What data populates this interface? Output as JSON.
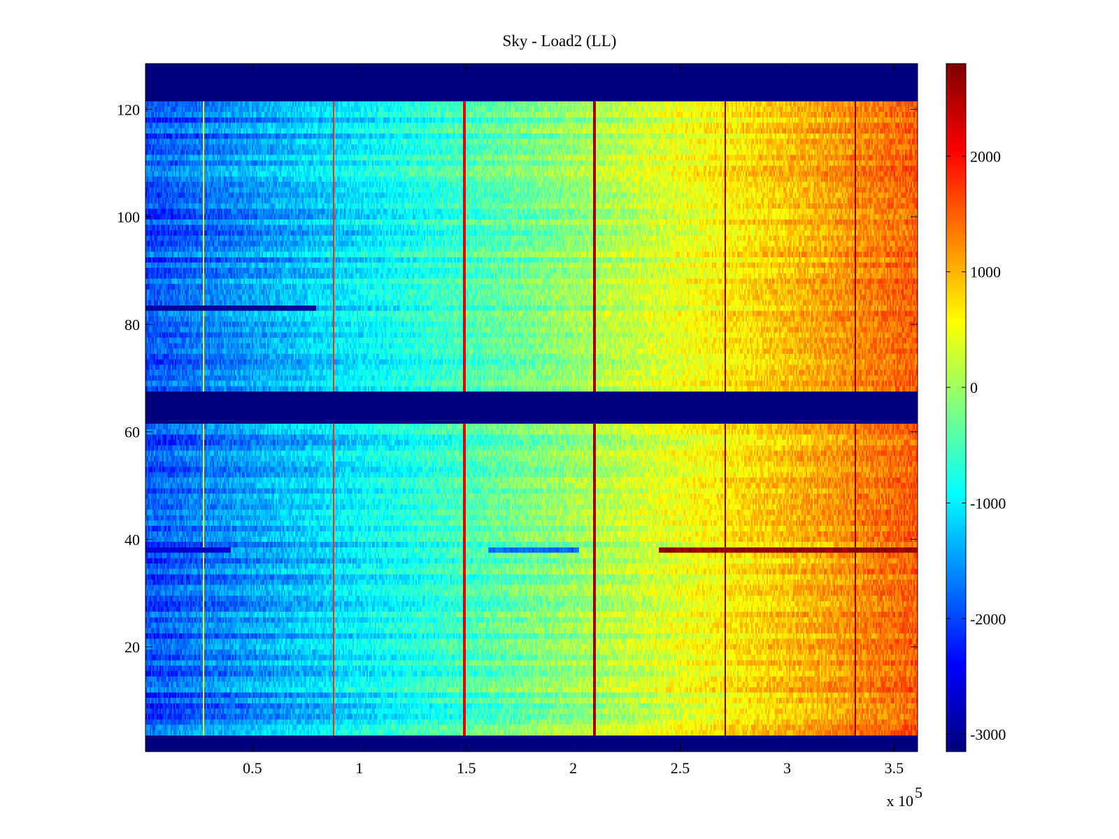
{
  "chart_data": {
    "type": "heatmap",
    "title": "Sky - Load2 (LL)",
    "xlabel": "",
    "ylabel": "",
    "x_exponent_label": "x 10",
    "x_exponent_power": "5",
    "xlim": [
      0,
      361000
    ],
    "ylim": [
      0.5,
      128.5
    ],
    "xticks": [
      {
        "value": 50000,
        "label": "0.5"
      },
      {
        "value": 100000,
        "label": "1"
      },
      {
        "value": 150000,
        "label": "1.5"
      },
      {
        "value": 200000,
        "label": "2"
      },
      {
        "value": 250000,
        "label": "2.5"
      },
      {
        "value": 300000,
        "label": "3"
      },
      {
        "value": 350000,
        "label": "3.5"
      }
    ],
    "yticks": [
      {
        "value": 20,
        "label": "20"
      },
      {
        "value": 40,
        "label": "40"
      },
      {
        "value": 60,
        "label": "60"
      },
      {
        "value": 80,
        "label": "80"
      },
      {
        "value": 100,
        "label": "100"
      },
      {
        "value": 120,
        "label": "120"
      }
    ],
    "colormap": "jet",
    "clim": [
      -3150,
      2800
    ],
    "colorbar_ticks": [
      {
        "value": 2000,
        "label": "2000"
      },
      {
        "value": 1000,
        "label": "1000"
      },
      {
        "value": 0,
        "label": "0"
      },
      {
        "value": -1000,
        "label": "-1000"
      },
      {
        "value": -2000,
        "label": "-2000"
      },
      {
        "value": -3000,
        "label": "-3000"
      }
    ],
    "rows": 128,
    "masked_row_ranges": [
      [
        1,
        3
      ],
      [
        62,
        67
      ],
      [
        122,
        128
      ]
    ],
    "masked_value": -3150,
    "trend": {
      "start_value": -2000,
      "end_value": 1500,
      "noise_amplitude": 300
    },
    "vertical_spikes": [
      {
        "x": 27000,
        "value": 700
      },
      {
        "x": 88000,
        "value": 1800
      },
      {
        "x": 149000,
        "value": 2200
      },
      {
        "x": 210000,
        "value": 2600
      },
      {
        "x": 271000,
        "value": 2700
      },
      {
        "x": 332000,
        "value": 2700
      }
    ],
    "row_anomalies": [
      {
        "row": 83,
        "x_start": 0,
        "x_end": 80000,
        "value": -3000
      },
      {
        "row": 38,
        "x_start": 0,
        "x_end": 40000,
        "value": -2700
      },
      {
        "row": 38,
        "x_start": 160000,
        "x_end": 203000,
        "value": -1800
      },
      {
        "row": 38,
        "x_start": 240000,
        "x_end": 361000,
        "value": 2700
      }
    ]
  }
}
